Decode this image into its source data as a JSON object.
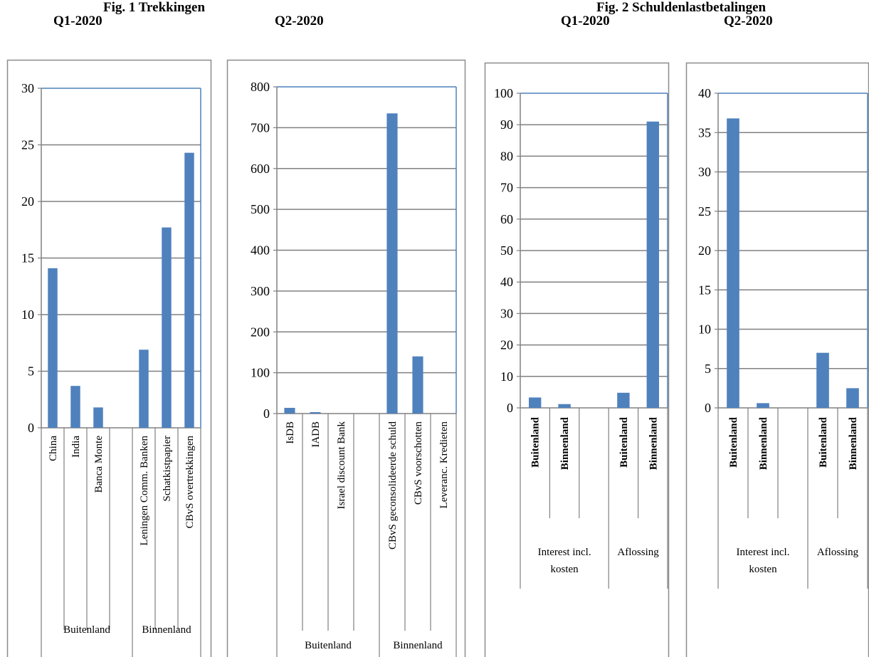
{
  "fig1": {
    "title": "Fig. 1 Trekkingen",
    "q1_label": "Q1-2020",
    "q2_label": "Q2-2020"
  },
  "fig2": {
    "title": "Fig. 2 Schuldenlastbetalingen",
    "q1_label": "Q1-2020",
    "q2_label": "Q2-2020"
  },
  "chart_data": [
    {
      "type": "bar",
      "title": "Q1-2020",
      "ylim": [
        0,
        30
      ],
      "yticks": [
        0,
        5,
        10,
        15,
        20,
        25,
        30
      ],
      "categories": [
        "China",
        "India",
        "Banca Monte",
        "",
        "Leningen Comm. Banken",
        "Schatkistpapier",
        "CBvS overtrekkingen"
      ],
      "values": [
        14.1,
        3.7,
        1.8,
        null,
        6.9,
        17.7,
        24.3
      ],
      "groups": [
        {
          "label": "Buitenland",
          "span": [
            0,
            3
          ]
        },
        {
          "label": "Binnenland",
          "span": [
            4,
            6
          ]
        }
      ],
      "grid": true,
      "color": "#4f81bd"
    },
    {
      "type": "bar",
      "title": "Q2-2020",
      "ylim": [
        0,
        800
      ],
      "yticks": [
        0,
        100,
        200,
        300,
        400,
        500,
        600,
        700,
        800
      ],
      "categories": [
        "IsDB",
        "IADB",
        "Israel discount Bank",
        "",
        "CBvS geconsolideerde schuld",
        "CBvS voorschotten",
        "Leveranc. Kredieten"
      ],
      "values": [
        14,
        3,
        0,
        null,
        735,
        140,
        0
      ],
      "groups": [
        {
          "label": "Buitenland",
          "span": [
            0,
            3
          ]
        },
        {
          "label": "Binnenland",
          "span": [
            4,
            6
          ]
        }
      ],
      "grid": true,
      "color": "#4f81bd"
    },
    {
      "type": "bar",
      "title": "Q1-2020",
      "ylim": [
        0,
        100
      ],
      "yticks": [
        0,
        10,
        20,
        30,
        40,
        50,
        60,
        70,
        80,
        90,
        100
      ],
      "categories": [
        "Buitenland",
        "Binnenland",
        "",
        "Buitenland",
        "Binnenland"
      ],
      "values": [
        3.3,
        1.2,
        null,
        4.8,
        91
      ],
      "groups": [
        {
          "label": "Interest incl. kosten",
          "span": [
            0,
            2
          ]
        },
        {
          "label": "Aflossing",
          "span": [
            3,
            4
          ]
        }
      ],
      "grid": true,
      "color": "#4f81bd"
    },
    {
      "type": "bar",
      "title": "Q2-2020",
      "ylim": [
        0,
        40
      ],
      "yticks": [
        0,
        5,
        10,
        15,
        20,
        25,
        30,
        35,
        40
      ],
      "categories": [
        "Buitenland",
        "Binnenland",
        "",
        "Buitenland",
        "Binnenland"
      ],
      "values": [
        36.8,
        0.6,
        null,
        7,
        2.5
      ],
      "groups": [
        {
          "label": "Interest incl. kosten",
          "span": [
            0,
            2
          ]
        },
        {
          "label": "Aflossing",
          "span": [
            3,
            4
          ]
        }
      ],
      "grid": true,
      "color": "#4f81bd"
    }
  ]
}
